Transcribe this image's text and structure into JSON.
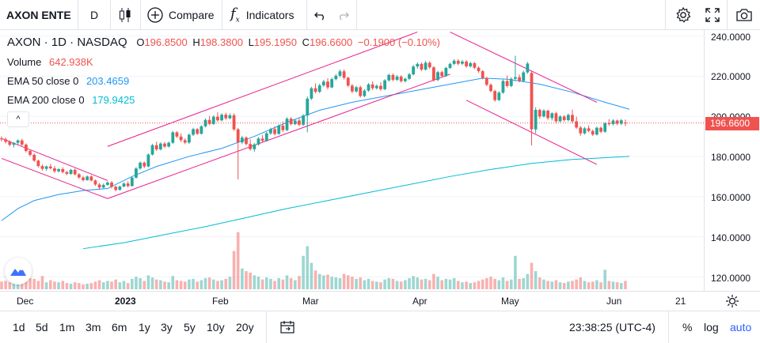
{
  "toolbar": {
    "symbol": "AXON ENTE",
    "interval": "D",
    "compare_label": "Compare",
    "indicators_label": "Indicators"
  },
  "legend": {
    "title": "AXON · 1D · NASDAQ",
    "o_label": "O",
    "o_value": "196.8500",
    "h_label": "H",
    "h_value": "198.3800",
    "l_label": "L",
    "l_value": "195.1950",
    "c_label": "C",
    "c_value": "196.6600",
    "change": "−0.1900 (−0.10%)",
    "volume_label": "Volume",
    "volume_value": "642.938K",
    "ema50_label": "EMA 50 close 0",
    "ema50_value": "203.4659",
    "ema200_label": "EMA 200 close 0",
    "ema200_value": "179.9425",
    "collapse_glyph": "^"
  },
  "price_axis": {
    "labels": [
      "240.0000",
      "220.0000",
      "200.0000",
      "180.0000",
      "160.0000",
      "140.0000",
      "120.0000"
    ],
    "last_price": "196.6600"
  },
  "time_axis": {
    "labels": [
      "Dec",
      "2023",
      "Feb",
      "Mar",
      "Apr",
      "May",
      "Jun",
      "21"
    ]
  },
  "ranges": [
    "1d",
    "5d",
    "1m",
    "3m",
    "6m",
    "1y",
    "3y",
    "5y",
    "10y",
    "20y"
  ],
  "bottom_right": {
    "clock": "23:38:25 (UTC-4)",
    "percent": "%",
    "log": "log",
    "auto": "auto"
  },
  "colors": {
    "up": "#26a69a",
    "down": "#ef5350",
    "ema50": "#2196f3",
    "ema200": "#00bcd4",
    "channel": "#e91e8c",
    "auto": "#2962ff"
  },
  "chart_data": {
    "type": "candlestick",
    "ylim": [
      113,
      243
    ],
    "ema50": [
      [
        0,
        148
      ],
      [
        4,
        154
      ],
      [
        8,
        158
      ],
      [
        14,
        161
      ],
      [
        20,
        163
      ],
      [
        26,
        164
      ],
      [
        32,
        170
      ],
      [
        38,
        175
      ],
      [
        46,
        180
      ],
      [
        54,
        184
      ],
      [
        62,
        190
      ],
      [
        70,
        197
      ],
      [
        78,
        203
      ],
      [
        86,
        207
      ],
      [
        94,
        210
      ],
      [
        102,
        213
      ],
      [
        110,
        216
      ],
      [
        118,
        219
      ],
      [
        124,
        218.5
      ],
      [
        132,
        216
      ],
      [
        140,
        212
      ],
      [
        148,
        207
      ],
      [
        154,
        203.5
      ]
    ],
    "ema200": [
      [
        20,
        134
      ],
      [
        30,
        137
      ],
      [
        40,
        141
      ],
      [
        50,
        145
      ],
      [
        60,
        149.5
      ],
      [
        70,
        154
      ],
      [
        80,
        158
      ],
      [
        90,
        162
      ],
      [
        100,
        166
      ],
      [
        110,
        170
      ],
      [
        120,
        173.5
      ],
      [
        130,
        176.5
      ],
      [
        140,
        178.5
      ],
      [
        154,
        180
      ]
    ],
    "channels": [
      [
        [
          0,
          189
        ],
        [
          26,
          168
        ]
      ],
      [
        [
          0,
          179
        ],
        [
          26,
          159
        ]
      ],
      [
        [
          26,
          185
        ],
        [
          102,
          242
        ]
      ],
      [
        [
          26,
          159
        ],
        [
          110,
          221
        ]
      ],
      [
        [
          110,
          242
        ],
        [
          146,
          207
        ]
      ],
      [
        [
          114,
          208
        ],
        [
          146,
          176
        ]
      ]
    ],
    "candles": [
      [
        189,
        190,
        187.5,
        188.5,
        0.11
      ],
      [
        188.5,
        189.5,
        186.5,
        187.3,
        0.12
      ],
      [
        187.3,
        188,
        185,
        185.8,
        0.1
      ],
      [
        185.8,
        187,
        184.5,
        186.8,
        0.09
      ],
      [
        186.8,
        188.5,
        185.8,
        188,
        0.14
      ],
      [
        188,
        188.8,
        185.2,
        185.9,
        0.13
      ],
      [
        185.9,
        186.5,
        182,
        182.7,
        0.17
      ],
      [
        182.7,
        183.5,
        180,
        180.8,
        0.16
      ],
      [
        180.8,
        181.5,
        177.3,
        177.9,
        0.15
      ],
      [
        177.9,
        178.4,
        174.5,
        175.2,
        0.12
      ],
      [
        175.2,
        176,
        173,
        173.8,
        0.19
      ],
      [
        173.8,
        175.5,
        172.8,
        175,
        0.1
      ],
      [
        175,
        176.3,
        173.5,
        174.1,
        0.13
      ],
      [
        174.1,
        175.2,
        171.8,
        172.6,
        0.11
      ],
      [
        172.6,
        174,
        172,
        173.7,
        0.1
      ],
      [
        173.7,
        174.6,
        171.6,
        172.2,
        0.12
      ],
      [
        172.2,
        172.8,
        170.6,
        171.3,
        0.09
      ],
      [
        171.3,
        173.8,
        170.8,
        173.3,
        0.08
      ],
      [
        173.3,
        174,
        170.5,
        171.1,
        0.1
      ],
      [
        171.1,
        171.7,
        168.8,
        169.5,
        0.09
      ],
      [
        169.5,
        170.3,
        167.5,
        168.2,
        0.07
      ],
      [
        168.2,
        170.5,
        167.9,
        170,
        0.08
      ],
      [
        170,
        170.6,
        167.5,
        168,
        0.09
      ],
      [
        168,
        168.5,
        165.3,
        166,
        0.11
      ],
      [
        166,
        166.8,
        163.7,
        164.5,
        0.13
      ],
      [
        164.5,
        166.5,
        164.1,
        165.8,
        0.1
      ],
      [
        165.8,
        167.6,
        165.4,
        167,
        0.12
      ],
      [
        167,
        167.8,
        164.1,
        164.9,
        0.11
      ],
      [
        164.9,
        165.4,
        162.6,
        163.3,
        0.14
      ],
      [
        163.3,
        165.5,
        163,
        165,
        0.1
      ],
      [
        165,
        167,
        164.6,
        166.5,
        0.12
      ],
      [
        166.5,
        167.6,
        164.5,
        165.2,
        0.09
      ],
      [
        165.2,
        170,
        165,
        169.4,
        0.15
      ],
      [
        169.4,
        174.7,
        169,
        174,
        0.18
      ],
      [
        174,
        177.5,
        173.4,
        176.9,
        0.16
      ],
      [
        176.9,
        177.5,
        174.1,
        175,
        0.12
      ],
      [
        175,
        181.5,
        174.6,
        180.9,
        0.2
      ],
      [
        180.9,
        186.3,
        180.5,
        185.6,
        0.17
      ],
      [
        185.6,
        187.3,
        182.7,
        183.5,
        0.14
      ],
      [
        183.5,
        187.1,
        183,
        186.4,
        0.13
      ],
      [
        186.4,
        187.2,
        184.1,
        184.9,
        0.11
      ],
      [
        184.9,
        187.4,
        184.5,
        186.8,
        0.1
      ],
      [
        186.8,
        192.7,
        186.2,
        192,
        0.19
      ],
      [
        192,
        192.6,
        189.2,
        189.9,
        0.13
      ],
      [
        189.9,
        191.5,
        187.2,
        188.1,
        0.12
      ],
      [
        188.1,
        189,
        186.1,
        186.9,
        0.11
      ],
      [
        186.9,
        191.5,
        186.3,
        190.8,
        0.14
      ],
      [
        190.8,
        194.3,
        190.2,
        193.6,
        0.15
      ],
      [
        193.6,
        194.1,
        190.7,
        191.3,
        0.11
      ],
      [
        191.3,
        195.6,
        190.9,
        195,
        0.13
      ],
      [
        195,
        199,
        194.5,
        198.2,
        0.16
      ],
      [
        198.2,
        200.2,
        195.5,
        196.2,
        0.17
      ],
      [
        196.2,
        200.5,
        195.7,
        199.8,
        0.14
      ],
      [
        199.8,
        202,
        197.2,
        198,
        0.12
      ],
      [
        198,
        201.5,
        197.4,
        200.8,
        0.13
      ],
      [
        200.8,
        201.8,
        198.2,
        199,
        0.15
      ],
      [
        199,
        201.5,
        198.5,
        200.5,
        0.18
      ],
      [
        200.5,
        201.5,
        192.7,
        193.5,
        0.55
      ],
      [
        193.5,
        194.2,
        168.5,
        187,
        0.82
      ],
      [
        187,
        190.3,
        186.1,
        189.4,
        0.3
      ],
      [
        189.4,
        190,
        185.5,
        186.2,
        0.26
      ],
      [
        186.2,
        188.5,
        182.9,
        183.6,
        0.24
      ],
      [
        183.6,
        186.7,
        182.3,
        186,
        0.2
      ],
      [
        186,
        189.6,
        185.4,
        188.9,
        0.18
      ],
      [
        188.9,
        190.6,
        187.1,
        187.8,
        0.14
      ],
      [
        187.8,
        192.2,
        187.4,
        191.5,
        0.17
      ],
      [
        191.5,
        194.3,
        190.8,
        193.6,
        0.15
      ],
      [
        193.6,
        195,
        190.5,
        191.2,
        0.12
      ],
      [
        191.2,
        196,
        190.8,
        195.3,
        0.16
      ],
      [
        195.3,
        197.5,
        192.2,
        193.1,
        0.14
      ],
      [
        193.1,
        199.5,
        192.6,
        198.8,
        0.2
      ],
      [
        198.8,
        199.6,
        195.4,
        196.1,
        0.16
      ],
      [
        196.1,
        198.6,
        195.5,
        197.9,
        0.13
      ],
      [
        197.9,
        198.9,
        195.1,
        195.8,
        0.19
      ],
      [
        195.8,
        201,
        195.2,
        200.4,
        0.48
      ],
      [
        200.4,
        209.9,
        192,
        208.8,
        0.62
      ],
      [
        208.8,
        214.7,
        208.1,
        214,
        0.38
      ],
      [
        214,
        216.4,
        211.4,
        212.2,
        0.27
      ],
      [
        212.2,
        216.2,
        211.6,
        215.4,
        0.22
      ],
      [
        215.4,
        218.2,
        214.7,
        217.3,
        0.2
      ],
      [
        217.3,
        219,
        213.4,
        214.4,
        0.21
      ],
      [
        214.4,
        219.3,
        214,
        218.5,
        0.18
      ],
      [
        218.5,
        221,
        217.9,
        220.2,
        0.17
      ],
      [
        220.2,
        223.3,
        219.5,
        222.4,
        0.16
      ],
      [
        222.4,
        223.4,
        218.3,
        219.2,
        0.22
      ],
      [
        219.2,
        219.7,
        214.5,
        215.3,
        0.2
      ],
      [
        215.3,
        216.1,
        211.5,
        212.4,
        0.18
      ],
      [
        212.4,
        215.2,
        211.8,
        214.5,
        0.15
      ],
      [
        214.5,
        215.3,
        209.3,
        210.1,
        0.17
      ],
      [
        210.1,
        213.6,
        209.5,
        212.8,
        0.13
      ],
      [
        212.8,
        216.6,
        212.2,
        215.9,
        0.15
      ],
      [
        215.9,
        217.4,
        213.1,
        214,
        0.12
      ],
      [
        214,
        215.9,
        213.4,
        215.2,
        0.11
      ],
      [
        215.2,
        217,
        212.7,
        213.5,
        0.1
      ],
      [
        213.5,
        218.5,
        213,
        217.9,
        0.14
      ],
      [
        217.9,
        221.3,
        217.3,
        220.6,
        0.16
      ],
      [
        220.6,
        221.4,
        217.4,
        218.2,
        0.15
      ],
      [
        218.2,
        220.6,
        217.6,
        219.8,
        0.12
      ],
      [
        219.8,
        220.5,
        216.8,
        217.5,
        0.11
      ],
      [
        217.5,
        219.3,
        216.9,
        218.7,
        0.13
      ],
      [
        218.7,
        221.6,
        218.1,
        220.9,
        0.16
      ],
      [
        220.9,
        225.5,
        220.4,
        224.8,
        0.19
      ],
      [
        224.8,
        226.9,
        223.7,
        226.1,
        0.17
      ],
      [
        226.1,
        226.9,
        222.5,
        223.3,
        0.14
      ],
      [
        223.3,
        227.6,
        222.8,
        226.7,
        0.15
      ],
      [
        226.7,
        227.4,
        223.6,
        224.4,
        0.13
      ],
      [
        224.4,
        225,
        217.3,
        218.1,
        0.22
      ],
      [
        218.1,
        222.7,
        217.5,
        222,
        0.18
      ],
      [
        222,
        222.8,
        219.4,
        220.1,
        0.13
      ],
      [
        220.1,
        224.7,
        219.6,
        224.1,
        0.15
      ],
      [
        224.1,
        226.8,
        223.6,
        226.1,
        0.14
      ],
      [
        226.1,
        228.5,
        225.5,
        227.7,
        0.16
      ],
      [
        227.7,
        228.5,
        225.4,
        226.2,
        0.12
      ],
      [
        226.2,
        228.1,
        225.5,
        227.3,
        0.1
      ],
      [
        227.3,
        228,
        224.2,
        224.9,
        0.11
      ],
      [
        224.9,
        227.2,
        224.3,
        226.5,
        0.09
      ],
      [
        226.5,
        227.1,
        223.5,
        224.2,
        0.1
      ],
      [
        224.2,
        224.9,
        221.7,
        222.5,
        0.12
      ],
      [
        222.5,
        223.1,
        218.4,
        219.1,
        0.14
      ],
      [
        219.1,
        219.7,
        215,
        215.7,
        0.16
      ],
      [
        215.7,
        216.4,
        212,
        212.6,
        0.18
      ],
      [
        212.6,
        213.2,
        207.2,
        208.1,
        0.15
      ],
      [
        208.1,
        212.5,
        207.6,
        211.8,
        0.13
      ],
      [
        211.8,
        218.3,
        211.2,
        217.6,
        0.17
      ],
      [
        217.6,
        220.3,
        214.4,
        215.1,
        0.12
      ],
      [
        215.1,
        219.4,
        214.5,
        218.7,
        0.14
      ],
      [
        218.7,
        230.2,
        217.5,
        219.5,
        0.48
      ],
      [
        219.5,
        220.8,
        216.9,
        217.6,
        0.15
      ],
      [
        217.6,
        222.8,
        217,
        221.9,
        0.16
      ],
      [
        221.9,
        227.1,
        221.2,
        226.3,
        0.22
      ],
      [
        221.6,
        222.3,
        185.5,
        193.5,
        0.38
      ],
      [
        193.5,
        204.5,
        191.5,
        203.2,
        0.26
      ],
      [
        203.2,
        203.8,
        198.8,
        199.9,
        0.17
      ],
      [
        199.9,
        203.6,
        199.4,
        202.8,
        0.14
      ],
      [
        202.8,
        203.3,
        198.2,
        199.1,
        0.12
      ],
      [
        199.1,
        202,
        197.9,
        201.5,
        0.11
      ],
      [
        201.5,
        202.2,
        196.3,
        197.5,
        0.13
      ],
      [
        197.5,
        200.6,
        197,
        199.9,
        0.1
      ],
      [
        199.9,
        200.6,
        197.3,
        198.1,
        0.09
      ],
      [
        198.1,
        201.4,
        197.4,
        200.7,
        0.11
      ],
      [
        200.7,
        203.3,
        196.5,
        197.5,
        0.12
      ],
      [
        197.5,
        199.8,
        193.7,
        194.4,
        0.14
      ],
      [
        194.4,
        195.2,
        190.3,
        191.5,
        0.17
      ],
      [
        191.5,
        194.7,
        190.9,
        194,
        0.12
      ],
      [
        194,
        195.5,
        192,
        192.7,
        0.1
      ],
      [
        192.7,
        193.4,
        190.2,
        190.9,
        0.11
      ],
      [
        190.9,
        194.8,
        190.4,
        194.3,
        0.13
      ],
      [
        194.3,
        194.9,
        191.6,
        192.3,
        0.1
      ],
      [
        192.3,
        197.1,
        191.8,
        196.5,
        0.28
      ],
      [
        196.5,
        198.6,
        195.3,
        196.1,
        0.12
      ],
      [
        196.1,
        198.6,
        195.5,
        197.9,
        0.11
      ],
      [
        197.9,
        198.3,
        195.6,
        196.3,
        0.1
      ],
      [
        196.3,
        198.7,
        195.6,
        198,
        0.09
      ],
      [
        196.85,
        198.38,
        195.195,
        196.66,
        0.12
      ]
    ]
  }
}
